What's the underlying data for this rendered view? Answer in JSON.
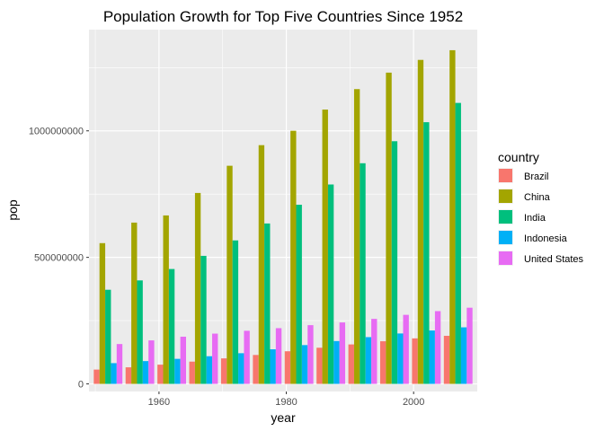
{
  "chart_data": {
    "type": "bar",
    "title": "Population Growth for Top Five Countries Since 1952",
    "xlabel": "year",
    "ylabel": "pop",
    "x": [
      1952,
      1957,
      1962,
      1967,
      1972,
      1977,
      1982,
      1987,
      1992,
      1997,
      2002,
      2007
    ],
    "xlim": [
      1949,
      2010
    ],
    "ylim": [
      -30000000,
      1400000000
    ],
    "xticks": [
      1960,
      1980,
      2000
    ],
    "yticks": [
      0,
      500000000,
      1000000000
    ],
    "ytick_labels": [
      "0",
      "500000000",
      "1000000000"
    ],
    "grid": true,
    "legend": {
      "title": "country",
      "position": "right"
    },
    "series": [
      {
        "name": "Brazil",
        "color": "#F8766D",
        "values": [
          56602560,
          65551171,
          76039390,
          88049823,
          100840058,
          114313951,
          128962939,
          142938076,
          155975974,
          168546719,
          179914212,
          190010647
        ]
      },
      {
        "name": "China",
        "color": "#A3A500",
        "values": [
          556263527,
          637408000,
          665770000,
          754550000,
          862030000,
          943455000,
          1000281000,
          1084035000,
          1164970000,
          1230075000,
          1280400000,
          1318683096
        ]
      },
      {
        "name": "India",
        "color": "#00BF7D",
        "values": [
          372000000,
          409000000,
          454000000,
          506000000,
          567000000,
          634000000,
          708000000,
          788000000,
          872000000,
          959000000,
          1034172547,
          1110396331
        ]
      },
      {
        "name": "Indonesia",
        "color": "#00B0F6",
        "values": [
          82052000,
          90124000,
          99028000,
          109343000,
          121282000,
          136725000,
          153343000,
          169276000,
          184816000,
          199278000,
          211060000,
          223547000
        ]
      },
      {
        "name": "United States",
        "color": "#E76BF3",
        "values": [
          157553000,
          171984000,
          186538000,
          198712000,
          209896000,
          220239000,
          232187835,
          242803533,
          256894189,
          272911760,
          287675526,
          301139947
        ]
      }
    ]
  }
}
